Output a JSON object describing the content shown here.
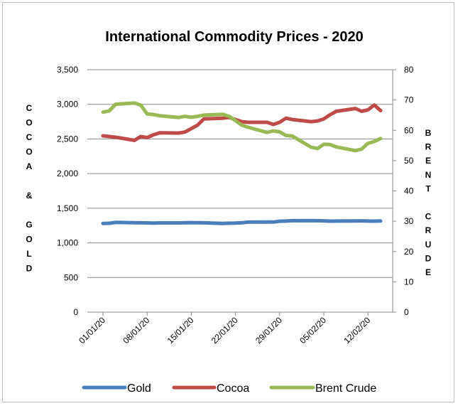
{
  "chart_data": {
    "type": "line",
    "title": "International Commodity Prices - 2020",
    "ylabel_left": "COCOA & GOLD",
    "ylabel_right": "BRENT CRUDE",
    "ylim_left": [
      0,
      3500
    ],
    "ylim_right": [
      0,
      80
    ],
    "y_ticks_left": [
      "0",
      "500",
      "1,000",
      "1,500",
      "2,000",
      "2,500",
      "3,000",
      "3,500"
    ],
    "y_ticks_right": [
      "0",
      "10",
      "20",
      "30",
      "40",
      "50",
      "60",
      "70",
      "80"
    ],
    "x_ticks": [
      "01/01/20",
      "08/01/20",
      "15/01/20",
      "22/01/20",
      "29/01/20",
      "05/02/20",
      "12/02/20"
    ],
    "x": [
      "01/01/20",
      "02/01/20",
      "03/01/20",
      "06/01/20",
      "07/01/20",
      "08/01/20",
      "09/01/20",
      "10/01/20",
      "13/01/20",
      "14/01/20",
      "15/01/20",
      "16/01/20",
      "17/01/20",
      "20/01/20",
      "21/01/20",
      "22/01/20",
      "23/01/20",
      "24/01/20",
      "27/01/20",
      "28/01/20",
      "29/01/20",
      "30/01/20",
      "31/01/20",
      "03/02/20",
      "04/02/20",
      "05/02/20",
      "06/02/20",
      "07/02/20",
      "10/02/20",
      "11/02/20",
      "12/02/20",
      "13/02/20",
      "14/02/20"
    ],
    "grid": true,
    "legend_position": "bottom",
    "series": [
      {
        "name": "Gold",
        "axis": "left",
        "color": "#4a7ebb",
        "values": [
          1281,
          1283,
          1295,
          1290,
          1289,
          1288,
          1285,
          1288,
          1288,
          1290,
          1292,
          1290,
          1289,
          1280,
          1284,
          1285,
          1290,
          1299,
          1301,
          1300,
          1313,
          1315,
          1320,
          1322,
          1320,
          1318,
          1314,
          1315,
          1317,
          1318,
          1315,
          1314,
          1316
        ]
      },
      {
        "name": "Cocoa",
        "axis": "left",
        "color": "#be4b48",
        "values": [
          2545,
          2535,
          2525,
          2480,
          2535,
          2520,
          2560,
          2590,
          2585,
          2600,
          2650,
          2700,
          2790,
          2800,
          2810,
          2780,
          2750,
          2740,
          2740,
          2710,
          2740,
          2800,
          2780,
          2750,
          2760,
          2790,
          2850,
          2900,
          2940,
          2900,
          2920,
          2990,
          2910
        ]
      },
      {
        "name": "Brent Crude",
        "axis": "right",
        "color": "#98b954",
        "values": [
          66,
          66.4,
          68.6,
          69,
          68.3,
          65.4,
          65.2,
          64.8,
          64.2,
          64.6,
          64.3,
          64.6,
          65,
          65.3,
          64.6,
          63.2,
          61.7,
          61,
          59.3,
          59.8,
          59.5,
          58.3,
          58.1,
          54.4,
          54,
          55.4,
          55.3,
          54.5,
          53.3,
          53.8,
          55.7,
          56.3,
          57.3
        ]
      }
    ]
  }
}
